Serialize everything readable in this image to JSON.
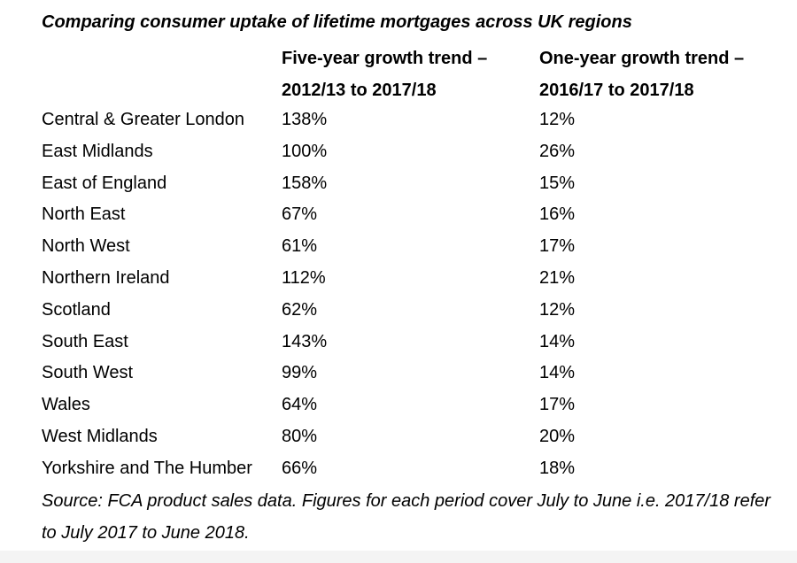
{
  "title": "Comparing consumer uptake of lifetime mortgages across UK regions",
  "columns": {
    "five_year_line1": "Five-year growth trend –",
    "five_year_line2": "2012/13 to 2017/18",
    "one_year_line1": "One-year growth trend –",
    "one_year_line2": "2016/17 to 2017/18"
  },
  "rows": [
    {
      "region": "Central & Greater London",
      "five": "138%",
      "one": "12%"
    },
    {
      "region": "East Midlands",
      "five": "100%",
      "one": "26%"
    },
    {
      "region": "East of England",
      "five": "158%",
      "one": "15%"
    },
    {
      "region": "North East",
      "five": "67%",
      "one": "16%"
    },
    {
      "region": "North West",
      "five": "61%",
      "one": "17%"
    },
    {
      "region": "Northern Ireland",
      "five": "112%",
      "one": "21%"
    },
    {
      "region": "Scotland",
      "five": "62%",
      "one": "12%"
    },
    {
      "region": "South East",
      "five": "143%",
      "one": "14%"
    },
    {
      "region": "South West",
      "five": "99%",
      "one": "14%"
    },
    {
      "region": "Wales",
      "five": "64%",
      "one": "17%"
    },
    {
      "region": "West Midlands",
      "five": "80%",
      "one": "20%"
    },
    {
      "region": "Yorkshire and The Humber",
      "five": "66%",
      "one": "18%"
    }
  ],
  "source": "Source: FCA product sales data. Figures for each period cover July to June i.e. 2017/18 refer to July 2017 to June 2018."
}
